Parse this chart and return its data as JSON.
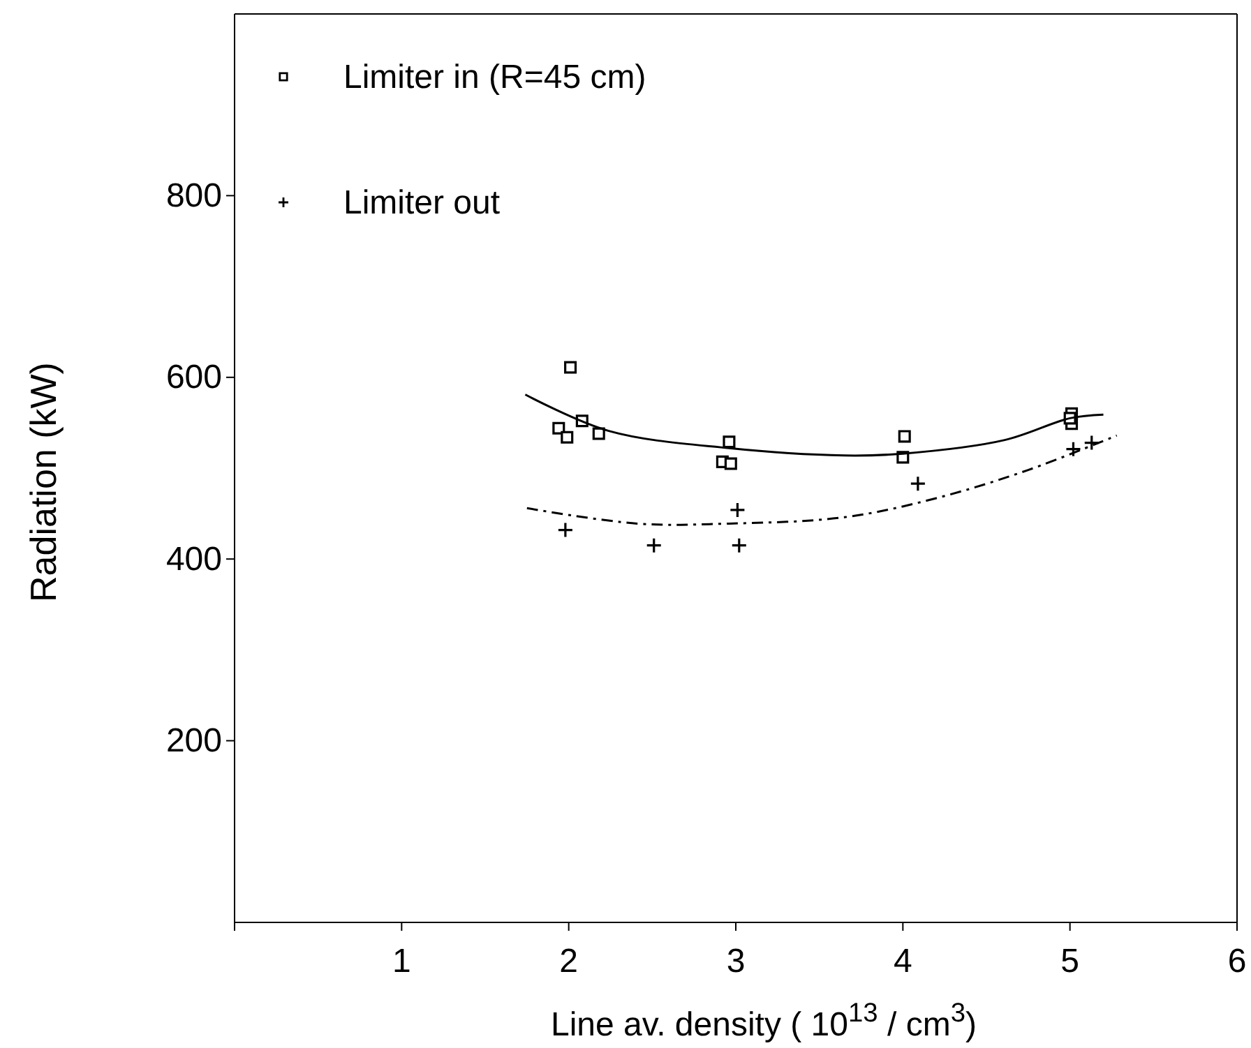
{
  "chart_data": {
    "type": "scatter",
    "xlabel": "Line av. density ( 10$^{13}$ / cm$^{3}$)",
    "ylabel": "Radiation  (kW)",
    "xlim": [
      0,
      6
    ],
    "xticks": [
      {
        "value": 0,
        "label": null
      },
      1,
      2,
      3,
      4,
      5,
      6
    ],
    "ylim": [
      0,
      1000
    ],
    "yticks": [
      200,
      400,
      600,
      800
    ],
    "grid": false,
    "legend": "top left",
    "series": [
      {
        "name": "Limiter in (R=45 cm)",
        "marker": "square",
        "color": "#000000",
        "x": [
          2.01,
          1.94,
          1.99,
          2.08,
          2.18,
          2.96,
          2.92,
          2.97,
          4.01,
          4.0,
          5.01,
          5.01,
          5.0
        ],
        "values": [
          611,
          544,
          534,
          552,
          538,
          529,
          507,
          505,
          535,
          512,
          560,
          549,
          555
        ]
      },
      {
        "name": "Limiter out",
        "marker": "cross",
        "color": "#000000",
        "x": [
          1.98,
          2.51,
          3.01,
          3.02,
          4.09,
          5.02,
          5.13
        ],
        "values": [
          432,
          415,
          454,
          415,
          483,
          521,
          528
        ]
      },
      {
        "type": "line",
        "line_style": "solid",
        "color": "#000000",
        "x": [
          1.74,
          2.24,
          2.96,
          3.65,
          4.0,
          4.61,
          5.0,
          5.2
        ],
        "values": [
          581,
          541,
          522,
          514,
          516,
          531,
          555,
          559
        ]
      },
      {
        "type": "line",
        "line_style": "dashed",
        "color": "#000000",
        "x": [
          1.75,
          2.41,
          2.96,
          3.65,
          4.2,
          4.75,
          5.28
        ],
        "values": [
          456,
          439,
          439,
          446,
          467,
          498,
          536
        ]
      }
    ]
  }
}
